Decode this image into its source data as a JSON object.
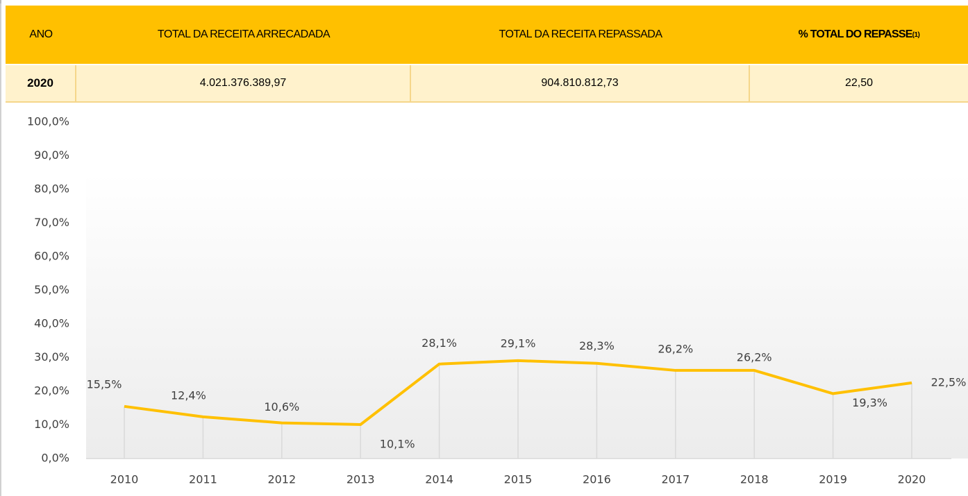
{
  "table": {
    "header": [
      "ANO",
      "TOTAL DA RECEITA ARRECADADA",
      "TOTAL DA RECEITA REPASSADA",
      "% TOTAL DO REPASSE"
    ],
    "header_note": "(1)",
    "rows": [
      [
        "2020",
        "4.021.376.389,97",
        "904.810.812,73",
        "22,50"
      ]
    ]
  },
  "chart_data": {
    "type": "line",
    "categories": [
      "2010",
      "2011",
      "2012",
      "2013",
      "2014",
      "2015",
      "2016",
      "2017",
      "2018",
      "2019",
      "2020"
    ],
    "values": [
      15.5,
      12.4,
      10.6,
      10.1,
      28.1,
      29.1,
      28.3,
      26.2,
      26.2,
      19.3,
      22.5
    ],
    "value_labels": [
      "15,5%",
      "12,4%",
      "10,6%",
      "10,1%",
      "28,1%",
      "29,1%",
      "28,3%",
      "26,2%",
      "26,2%",
      "19,3%",
      "22,5%"
    ],
    "color": "#FFC000",
    "ylim": [
      0,
      100
    ],
    "yticks": [
      {
        "value": 0,
        "label": "0,0%"
      },
      {
        "value": 10,
        "label": "10,0%"
      },
      {
        "value": 20,
        "label": "20,0%"
      },
      {
        "value": 30,
        "label": "30,0%"
      },
      {
        "value": 40,
        "label": "40,0%"
      },
      {
        "value": 50,
        "label": "50,0%"
      },
      {
        "value": 60,
        "label": "60,0%"
      },
      {
        "value": 70,
        "label": "70,0%"
      },
      {
        "value": 80,
        "label": "80,0%"
      },
      {
        "value": 90,
        "label": "90,0%"
      },
      {
        "value": 100,
        "label": "100,0%"
      }
    ]
  }
}
